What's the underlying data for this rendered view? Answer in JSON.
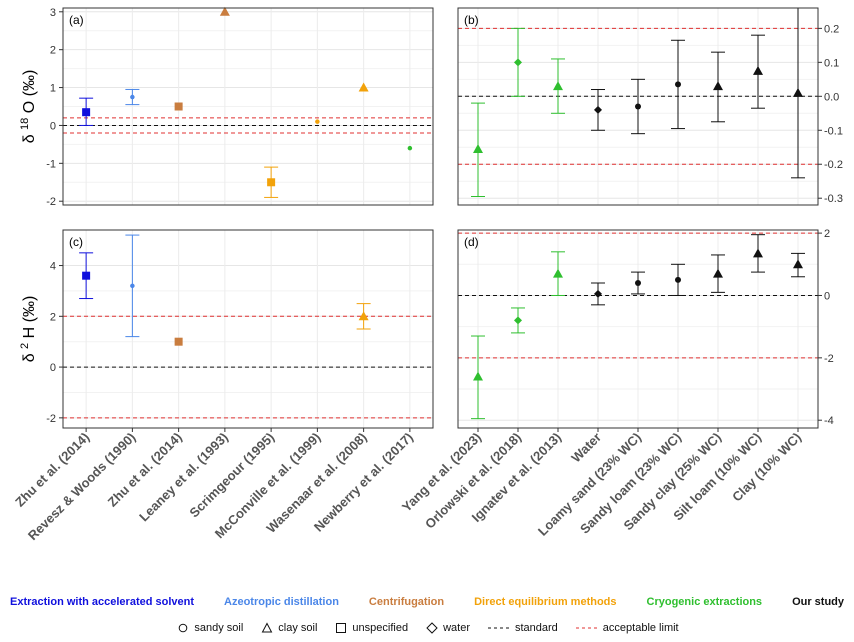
{
  "colors": {
    "accelerated_solvent": "#1010dd",
    "azeotropic": "#4a86e8",
    "centrifugation": "#c97d3f",
    "direct_equilibrium": "#f2a20a",
    "cryogenic": "#2fbf2f",
    "our_study": "#111111",
    "standard": "#111111",
    "limit": "#e03030"
  },
  "chart_data": [
    {
      "id": "a",
      "panel_label": "(a)",
      "type": "scatter",
      "ylabel": "δ 18O (‰)",
      "ylabel_base": "δ",
      "ylabel_sup": "18",
      "ylabel_rest": "O (‰)",
      "ylim": [
        -2.1,
        3.1
      ],
      "yticks": [
        -2,
        -1,
        0,
        1,
        2,
        3
      ],
      "ytick_labels": [
        "-2",
        "-1",
        "0",
        "1",
        "2",
        "3"
      ],
      "yaxis_side": "left",
      "standard": 0,
      "limits": [
        -0.2,
        0.2
      ],
      "points": [
        {
          "x": 0,
          "y": 0.35,
          "lo": 0.0,
          "hi": 0.72,
          "shape": "square",
          "group": "accelerated_solvent"
        },
        {
          "x": 1,
          "y": 0.75,
          "lo": 0.55,
          "hi": 0.95,
          "shape": "circle",
          "group": "azeotropic"
        },
        {
          "x": 2,
          "y": 0.5,
          "shape": "square",
          "group": "centrifugation"
        },
        {
          "x": 3,
          "y": 3.0,
          "shape": "triangle",
          "group": "centrifugation"
        },
        {
          "x": 4,
          "y": -1.5,
          "lo": -1.9,
          "hi": -1.1,
          "shape": "square",
          "group": "direct_equilibrium"
        },
        {
          "x": 5,
          "y": 0.1,
          "shape": "circle",
          "group": "direct_equilibrium"
        },
        {
          "x": 6,
          "y": 1.0,
          "shape": "triangle",
          "group": "direct_equilibrium"
        },
        {
          "x": 7,
          "y": -0.6,
          "shape": "circle",
          "group": "cryogenic"
        }
      ]
    },
    {
      "id": "b",
      "panel_label": "(b)",
      "type": "scatter",
      "ylim": [
        -0.32,
        0.26
      ],
      "yticks": [
        -0.3,
        -0.2,
        -0.1,
        0.0,
        0.1,
        0.2
      ],
      "ytick_labels": [
        "-0.3",
        "-0.2",
        "-0.1",
        "0.0",
        "0.1",
        "0.2"
      ],
      "yaxis_side": "right",
      "standard": 0,
      "limits": [
        -0.2,
        0.2
      ],
      "points": [
        {
          "x": 0,
          "y": -0.155,
          "lo": -0.295,
          "hi": -0.02,
          "shape": "triangle",
          "group": "cryogenic"
        },
        {
          "x": 1,
          "y": 0.1,
          "lo": 0.0,
          "hi": 0.2,
          "shape": "diamond",
          "group": "cryogenic"
        },
        {
          "x": 2,
          "y": 0.03,
          "lo": -0.05,
          "hi": 0.11,
          "shape": "triangle",
          "group": "cryogenic"
        },
        {
          "x": 3,
          "y": -0.04,
          "lo": -0.1,
          "hi": 0.02,
          "shape": "diamond",
          "group": "our_study"
        },
        {
          "x": 4,
          "y": -0.03,
          "lo": -0.11,
          "hi": 0.05,
          "shape": "circle",
          "group": "our_study"
        },
        {
          "x": 5,
          "y": 0.035,
          "lo": -0.095,
          "hi": 0.165,
          "shape": "circle",
          "group": "our_study"
        },
        {
          "x": 6,
          "y": 0.03,
          "lo": -0.075,
          "hi": 0.13,
          "shape": "triangle",
          "group": "our_study"
        },
        {
          "x": 7,
          "y": 0.075,
          "lo": -0.035,
          "hi": 0.18,
          "shape": "triangle",
          "group": "our_study"
        },
        {
          "x": 8,
          "y": 0.01,
          "lo": -0.24,
          "hi": 0.26,
          "shape": "triangle",
          "group": "our_study"
        }
      ]
    },
    {
      "id": "c",
      "panel_label": "(c)",
      "type": "scatter",
      "ylabel": "δ 2H (‰)",
      "ylabel_base": "δ",
      "ylabel_sup": "2",
      "ylabel_rest": "H (‰)",
      "ylim": [
        -2.4,
        5.4
      ],
      "yticks": [
        -2,
        0,
        2,
        4
      ],
      "ytick_labels": [
        "-2",
        "0",
        "2",
        "4"
      ],
      "yaxis_side": "left",
      "standard": 0,
      "limits": [
        -2,
        2
      ],
      "points": [
        {
          "x": 0,
          "y": 3.6,
          "lo": 2.7,
          "hi": 4.5,
          "shape": "square",
          "group": "accelerated_solvent"
        },
        {
          "x": 1,
          "y": 3.2,
          "lo": 1.2,
          "hi": 5.2,
          "shape": "circle",
          "group": "azeotropic"
        },
        {
          "x": 2,
          "y": 1.0,
          "shape": "square",
          "group": "centrifugation"
        },
        {
          "x": 6,
          "y": 2.0,
          "lo": 1.5,
          "hi": 2.5,
          "shape": "triangle",
          "group": "direct_equilibrium"
        }
      ]
    },
    {
      "id": "d",
      "panel_label": "(d)",
      "type": "scatter",
      "ylim": [
        -4.25,
        2.1
      ],
      "yticks": [
        -4,
        -2,
        0,
        2
      ],
      "ytick_labels": [
        "-4",
        "-2",
        "0",
        "2"
      ],
      "yaxis_side": "right",
      "standard": 0,
      "limits": [
        -2,
        2
      ],
      "points": [
        {
          "x": 0,
          "y": -2.6,
          "lo": -3.95,
          "hi": -1.3,
          "shape": "triangle",
          "group": "cryogenic"
        },
        {
          "x": 1,
          "y": -0.8,
          "lo": -1.2,
          "hi": -0.4,
          "shape": "diamond",
          "group": "cryogenic"
        },
        {
          "x": 2,
          "y": 0.7,
          "lo": 0.0,
          "hi": 1.4,
          "shape": "triangle",
          "group": "cryogenic"
        },
        {
          "x": 3,
          "y": 0.05,
          "lo": -0.3,
          "hi": 0.4,
          "shape": "diamond",
          "group": "our_study"
        },
        {
          "x": 4,
          "y": 0.4,
          "lo": 0.05,
          "hi": 0.75,
          "shape": "circle",
          "group": "our_study"
        },
        {
          "x": 5,
          "y": 0.5,
          "lo": 0.0,
          "hi": 1.0,
          "shape": "circle",
          "group": "our_study"
        },
        {
          "x": 6,
          "y": 0.7,
          "lo": 0.1,
          "hi": 1.3,
          "shape": "triangle",
          "group": "our_study"
        },
        {
          "x": 7,
          "y": 1.35,
          "lo": 0.75,
          "hi": 1.95,
          "shape": "triangle",
          "group": "our_study"
        },
        {
          "x": 8,
          "y": 1.0,
          "lo": 0.6,
          "hi": 1.35,
          "shape": "triangle",
          "group": "our_study"
        }
      ]
    }
  ],
  "x_labels_left": [
    "Zhu et al. (2014)",
    "Revesz & Woods (1990)",
    "Zhu et al. (2014)",
    "Leaney et al. (1993)",
    "Scrimgeour (1995)",
    "McConville et al. (1999)",
    "Wasenaar et al. (2008)",
    "Newberry et al. (2017)"
  ],
  "x_labels_right": [
    "Yang et al. (2023)",
    "Orlowski et al. (2018)",
    "Ignatev et al. (2013)",
    "Water",
    "Loamy sand (23% WC)",
    "Sandy loam (23% WC)",
    "Sandy clay (25% WC)",
    "Silt loam (10% WC)",
    "Clay (10% WC)"
  ],
  "legend": {
    "methods": [
      {
        "label": "Extraction with accelerated solvent",
        "group": "accelerated_solvent"
      },
      {
        "label": "Azeotropic distillation",
        "group": "azeotropic"
      },
      {
        "label": "Centrifugation",
        "group": "centrifugation"
      },
      {
        "label": "Direct equilibrium methods",
        "group": "direct_equilibrium"
      },
      {
        "label": "Cryogenic extractions",
        "group": "cryogenic"
      },
      {
        "label": "Our study",
        "group": "our_study"
      }
    ],
    "shapes": [
      {
        "label": "sandy soil",
        "icon": "circle"
      },
      {
        "label": "clay soil",
        "icon": "triangle"
      },
      {
        "label": "unspecified",
        "icon": "square"
      },
      {
        "label": "water",
        "icon": "diamond"
      },
      {
        "label": "standard",
        "icon": "dash-black"
      },
      {
        "label": "acceptable limit",
        "icon": "dash-red"
      }
    ]
  }
}
